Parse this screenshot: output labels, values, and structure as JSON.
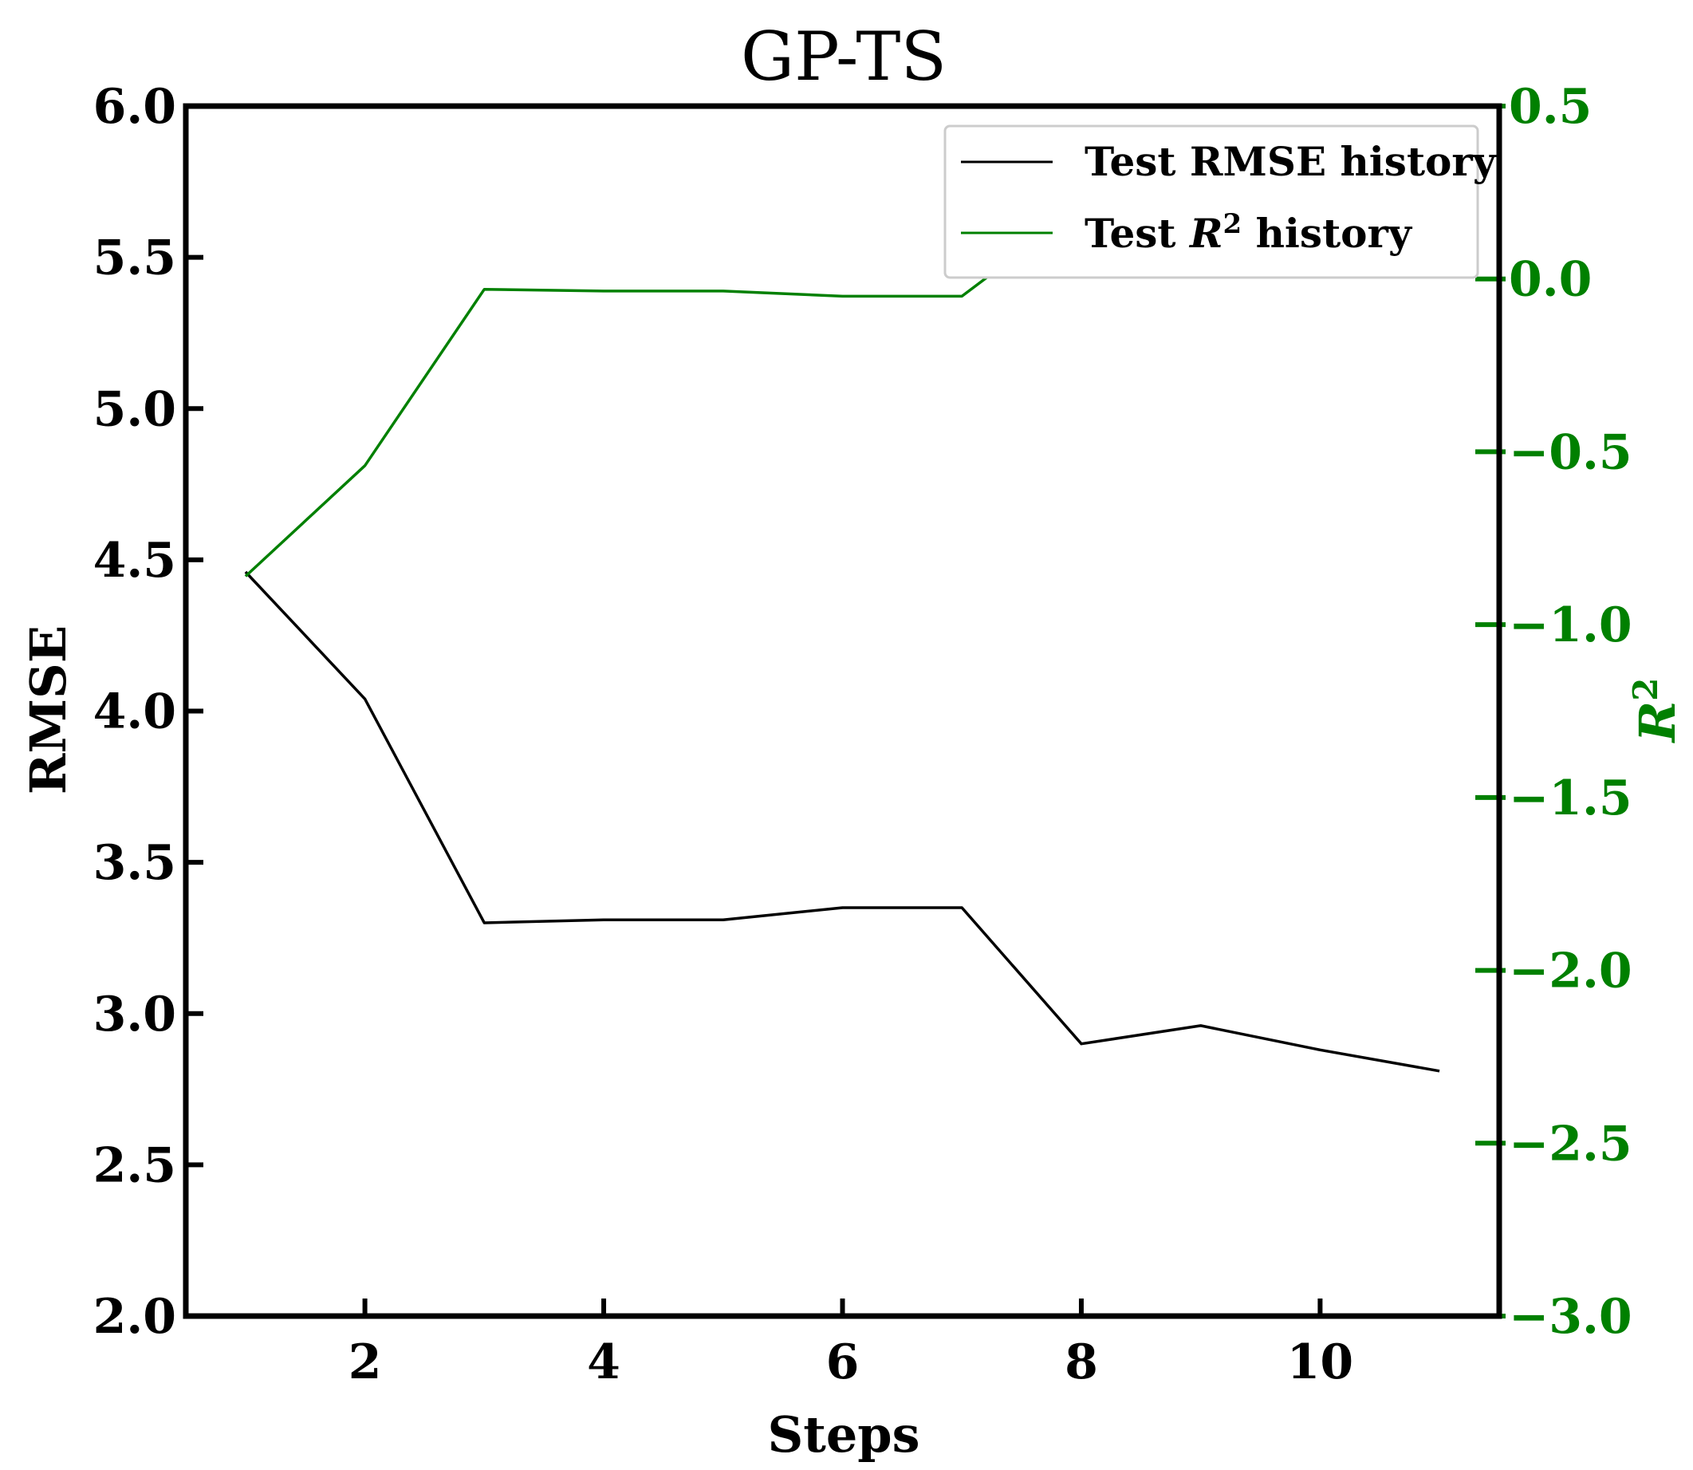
{
  "chart_data": {
    "type": "line",
    "title": "GP-TS",
    "xlabel": "Steps",
    "ylabel": "RMSE",
    "y2label": "R",
    "y2label_sup": "2",
    "xlim": [
      0.5,
      11.5
    ],
    "ylim": [
      2.0,
      6.0
    ],
    "y2lim": [
      -3.0,
      0.5
    ],
    "x_ticks": [
      2,
      4,
      6,
      8,
      10
    ],
    "y_ticks": [
      "2.0",
      "2.5",
      "3.0",
      "3.5",
      "4.0",
      "4.5",
      "5.0",
      "5.5",
      "6.0"
    ],
    "y2_ticks": [
      "−3.0",
      "−2.5",
      "−2.0",
      "−1.5",
      "−1.0",
      "−0.5",
      "0.0",
      "0.5"
    ],
    "x": [
      1,
      2,
      3,
      4,
      5,
      6,
      7,
      8,
      9,
      10,
      11
    ],
    "series": [
      {
        "name": "Test RMSE history",
        "axis": "left",
        "color": "#000000",
        "values": [
          4.46,
          4.04,
          3.3,
          3.31,
          3.31,
          3.35,
          3.35,
          2.9,
          2.96,
          2.88,
          2.81
        ]
      },
      {
        "name_prefix": "Test ",
        "name_math": "R",
        "name_sup": "2",
        "name_suffix": " history",
        "axis": "right",
        "color": "#008000",
        "values": [
          -0.86,
          -0.54,
          -0.03,
          -0.035,
          -0.035,
          -0.05,
          -0.05,
          0.21,
          0.17,
          0.23,
          0.25
        ]
      }
    ],
    "grid": false,
    "legend_position": "top-right",
    "right_axis_color": "#008000"
  }
}
